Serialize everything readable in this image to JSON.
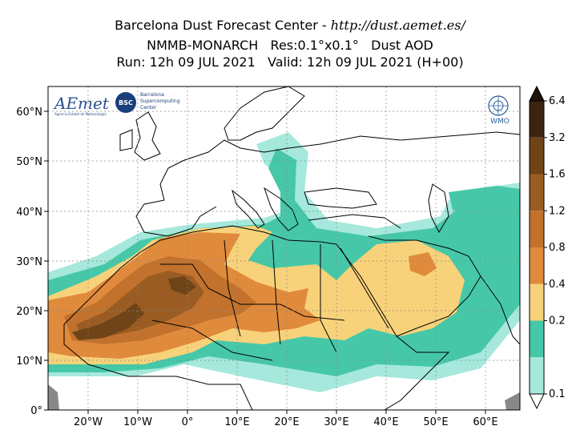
{
  "header": {
    "line1_prefix": "Barcelona Dust Forecast Center - ",
    "line1_url": "http://dust.aemet.es/",
    "line2": "NMMB-MONARCH   Res:0.1°x0.1°   Dust AOD",
    "line3": "Run: 12h 09 JUL 2021   Valid: 12h 09 JUL 2021 (H+00)"
  },
  "axes": {
    "lat_labels": [
      "60°N",
      "50°N",
      "40°N",
      "30°N",
      "20°N",
      "10°N",
      "0°"
    ],
    "lon_labels": [
      "20°W",
      "10°W",
      "0°",
      "10°E",
      "20°E",
      "30°E",
      "40°E",
      "50°E",
      "60°E"
    ]
  },
  "colorbar": {
    "levels": [
      "6.4",
      "3.2",
      "1.6",
      "1.2",
      "0.8",
      "0.4",
      "0.2",
      "0.1"
    ],
    "colors": [
      "#3b2412",
      "#6e4418",
      "#9a5c22",
      "#c2722c",
      "#e08a3c",
      "#f8d27a",
      "#46c8a8",
      "#a6e8dc"
    ]
  },
  "logos": {
    "aemet": "AEmet",
    "aemet_sub": "Agencia Estatal de Meteorología",
    "bsc": "BSC",
    "bsc_text": [
      "Barcelona",
      "Supercomputing",
      "Center"
    ],
    "wmo": "WMO"
  }
}
